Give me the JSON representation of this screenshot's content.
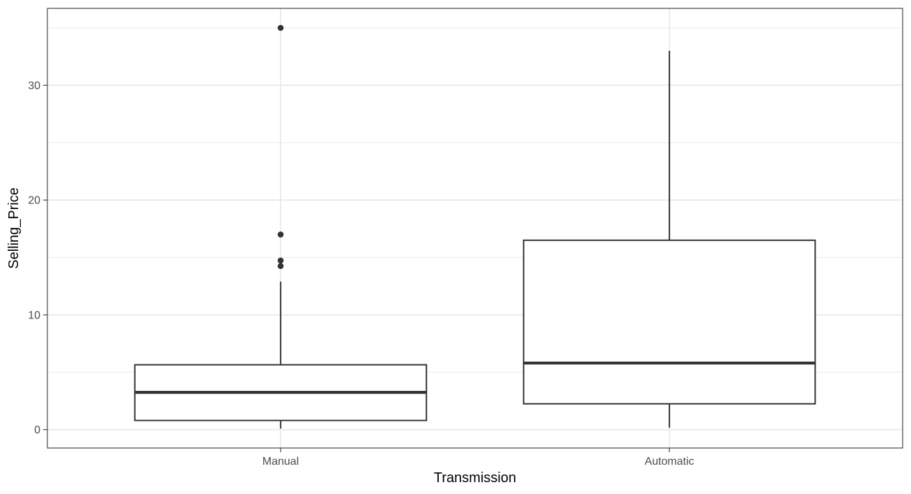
{
  "chart_data": {
    "type": "boxplot",
    "xlabel": "Transmission",
    "ylabel": "Selling_Price",
    "categories": [
      "Manual",
      "Automatic"
    ],
    "boxes": [
      {
        "category": "Manual",
        "whisker_low": 0.1,
        "q1": 0.8,
        "median": 3.25,
        "q3": 5.65,
        "whisker_high": 12.9,
        "outliers": [
          14.25,
          14.73,
          17.0,
          35.0
        ]
      },
      {
        "category": "Automatic",
        "whisker_low": 0.17,
        "q1": 2.25,
        "median": 5.8,
        "q3": 16.5,
        "whisker_high": 33.0,
        "outliers": []
      }
    ],
    "ylim": [
      -1.6,
      36.7
    ],
    "yticks": [
      0,
      10,
      20,
      30
    ],
    "ytick_labels": [
      "0",
      "10",
      "20",
      "30"
    ],
    "grid": true,
    "colors": {
      "line": "#333333",
      "box_fill": "#ffffff",
      "grid": "#ebebeb",
      "panel_border": "#333333"
    }
  }
}
